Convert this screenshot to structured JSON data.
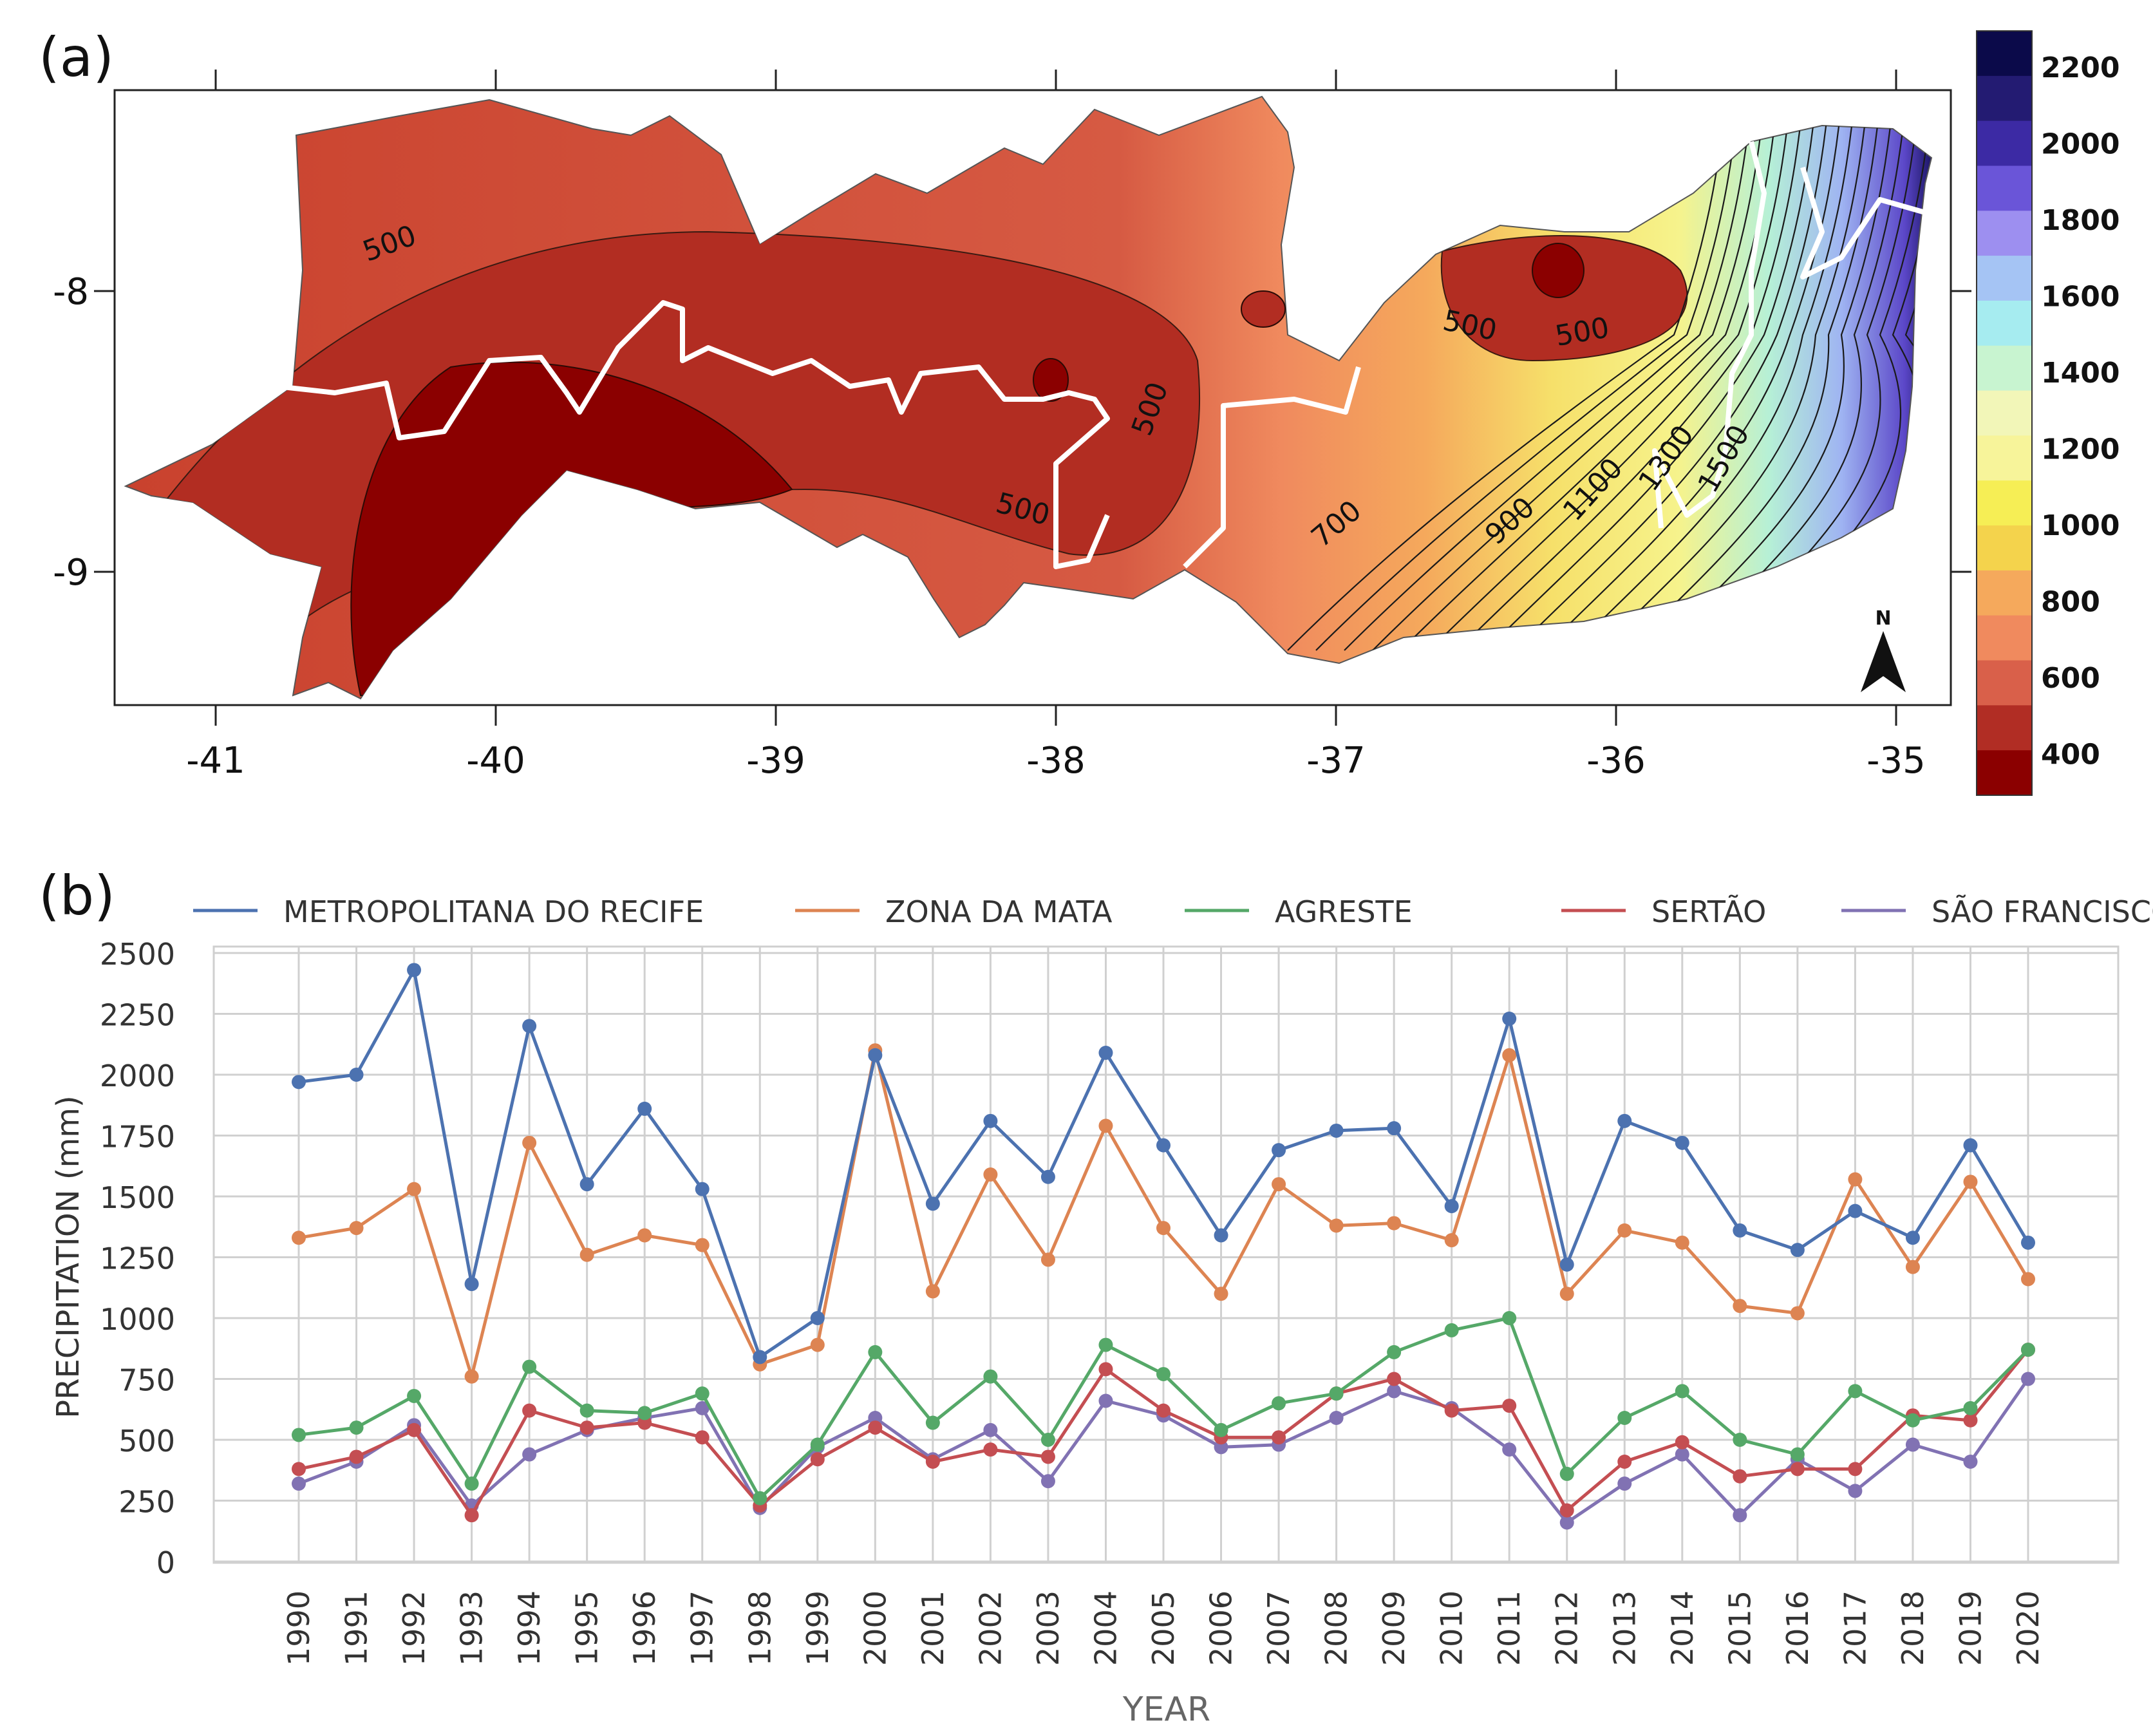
{
  "panel_a": {
    "label": "(a)",
    "lon_ticks": [
      "-41",
      "-40",
      "-39",
      "-38",
      "-37",
      "-36",
      "-35"
    ],
    "lat_ticks": [
      "-8",
      "-9"
    ],
    "colorbar_ticks": [
      "2200",
      "2000",
      "1800",
      "1600",
      "1400",
      "1200",
      "1000",
      "800",
      "600",
      "400"
    ],
    "colorbar_colors": [
      "#0b0a4a",
      "#231b72",
      "#3c2aa4",
      "#6a55d8",
      "#9d8ff0",
      "#a5c4f4",
      "#a6ecf0",
      "#c8f4d0",
      "#f2f6b8",
      "#f7f49a",
      "#f6ee55",
      "#f4d34c",
      "#f5a95c",
      "#f08a5e",
      "#d9604a",
      "#b12d24",
      "#8b0000"
    ],
    "contour_labels": [
      "500",
      "500",
      "500",
      "500",
      "500",
      "700",
      "900",
      "1100",
      "1300",
      "1500"
    ],
    "north_label": "N"
  },
  "panel_b": {
    "label": "(b)"
  },
  "chart_data": {
    "type": "line",
    "title": "",
    "xlabel": "YEAR",
    "ylabel": "PRECIPITATION (mm)",
    "ylim": [
      0,
      2500
    ],
    "yticks": [
      "0",
      "250",
      "500",
      "750",
      "1000",
      "1250",
      "1500",
      "1750",
      "2000",
      "2250",
      "2500"
    ],
    "grid": true,
    "legend_position": "top",
    "x": [
      "1990",
      "1991",
      "1992",
      "1993",
      "1994",
      "1995",
      "1996",
      "1997",
      "1998",
      "1999",
      "2000",
      "2001",
      "2002",
      "2003",
      "2004",
      "2005",
      "2006",
      "2007",
      "2008",
      "2009",
      "2010",
      "2011",
      "2012",
      "2013",
      "2014",
      "2015",
      "2016",
      "2017",
      "2018",
      "2019",
      "2020"
    ],
    "series": [
      {
        "name": "METROPOLITANA DO RECIFE",
        "color": "#4c72b0",
        "values": [
          1970,
          2000,
          2430,
          1140,
          2200,
          1550,
          1860,
          1530,
          840,
          1000,
          2080,
          1470,
          1810,
          1580,
          2090,
          1710,
          1340,
          1690,
          1770,
          1780,
          1460,
          2230,
          1220,
          1810,
          1720,
          1360,
          1280,
          1440,
          1330,
          1710,
          1310
        ]
      },
      {
        "name": "ZONA DA MATA",
        "color": "#dd8452",
        "values": [
          1330,
          1370,
          1530,
          760,
          1720,
          1260,
          1340,
          1300,
          810,
          890,
          2100,
          1110,
          1590,
          1240,
          1790,
          1370,
          1100,
          1550,
          1380,
          1390,
          1320,
          2080,
          1100,
          1360,
          1310,
          1050,
          1020,
          1570,
          1210,
          1560,
          1160
        ]
      },
      {
        "name": "AGRESTE",
        "color": "#55a868",
        "values": [
          520,
          550,
          680,
          320,
          800,
          620,
          610,
          690,
          260,
          480,
          860,
          570,
          760,
          500,
          890,
          770,
          540,
          650,
          690,
          860,
          950,
          1000,
          360,
          590,
          700,
          500,
          440,
          700,
          580,
          630,
          870
        ]
      },
      {
        "name": "SERTÃO",
        "color": "#c44e52",
        "values": [
          380,
          430,
          540,
          190,
          620,
          550,
          570,
          510,
          230,
          420,
          550,
          410,
          460,
          430,
          790,
          620,
          510,
          510,
          690,
          750,
          620,
          640,
          210,
          410,
          490,
          350,
          380,
          380,
          600,
          580,
          870
        ]
      },
      {
        "name": "SÃO FRANCISCO",
        "color": "#8172b3",
        "values": [
          320,
          410,
          560,
          230,
          440,
          540,
          590,
          630,
          220,
          470,
          590,
          420,
          540,
          330,
          660,
          600,
          470,
          480,
          590,
          700,
          630,
          460,
          160,
          320,
          440,
          190,
          420,
          290,
          480,
          410,
          750
        ]
      }
    ]
  }
}
